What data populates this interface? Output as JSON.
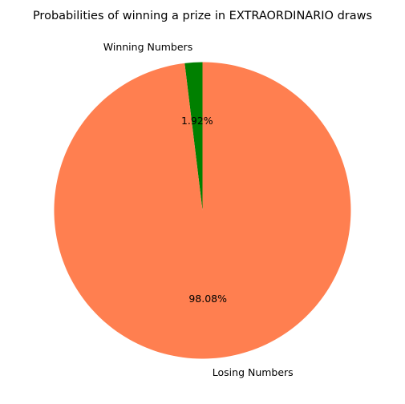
{
  "chart_data": {
    "type": "pie",
    "title": "Probabilities of winning a prize in EXTRAORDINARIO draws",
    "categories": [
      "Winning Numbers",
      "Losing Numbers"
    ],
    "values": [
      1.92,
      98.08
    ],
    "percent_labels": [
      "1.92%",
      "98.08%"
    ],
    "colors": [
      "#008000",
      "#ff7f50"
    ],
    "start_angle": "top",
    "direction": "counterclockwise",
    "legend": "none"
  }
}
